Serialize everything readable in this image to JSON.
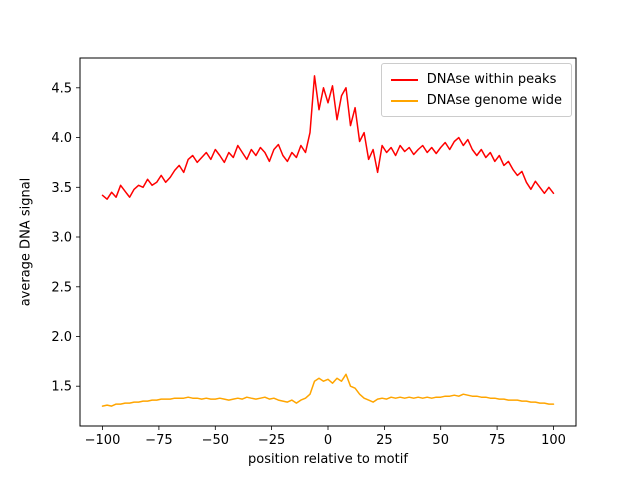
{
  "figure": {
    "background": "#ffffff"
  },
  "chart_data": {
    "type": "line",
    "title": "",
    "xlabel": "position relative to motif",
    "ylabel": "average DNA signal",
    "xlim": [
      -110,
      110
    ],
    "ylim": [
      1.1,
      4.8
    ],
    "grid": false,
    "legend": {
      "position": "upper right",
      "border_color": "#cccccc",
      "background": "#ffffff"
    },
    "xticks": [
      {
        "value": -100,
        "label": "−100"
      },
      {
        "value": -75,
        "label": "−75"
      },
      {
        "value": -50,
        "label": "−50"
      },
      {
        "value": -25,
        "label": "−25"
      },
      {
        "value": 0,
        "label": "0"
      },
      {
        "value": 25,
        "label": "25"
      },
      {
        "value": 50,
        "label": "50"
      },
      {
        "value": 75,
        "label": "75"
      },
      {
        "value": 100,
        "label": "100"
      }
    ],
    "yticks": [
      {
        "value": 1.5,
        "label": "1.5"
      },
      {
        "value": 2.0,
        "label": "2.0"
      },
      {
        "value": 2.5,
        "label": "2.5"
      },
      {
        "value": 3.0,
        "label": "3.0"
      },
      {
        "value": 3.5,
        "label": "3.5"
      },
      {
        "value": 4.0,
        "label": "4.0"
      },
      {
        "value": 4.5,
        "label": "4.5"
      }
    ],
    "x": [
      -100,
      -98,
      -96,
      -94,
      -92,
      -90,
      -88,
      -86,
      -84,
      -82,
      -80,
      -78,
      -76,
      -74,
      -72,
      -70,
      -68,
      -66,
      -64,
      -62,
      -60,
      -58,
      -56,
      -54,
      -52,
      -50,
      -48,
      -46,
      -44,
      -42,
      -40,
      -38,
      -36,
      -34,
      -32,
      -30,
      -28,
      -26,
      -24,
      -22,
      -20,
      -18,
      -16,
      -14,
      -12,
      -10,
      -8,
      -6,
      -4,
      -2,
      0,
      2,
      4,
      6,
      8,
      10,
      12,
      14,
      16,
      18,
      20,
      22,
      24,
      26,
      28,
      30,
      32,
      34,
      36,
      38,
      40,
      42,
      44,
      46,
      48,
      50,
      52,
      54,
      56,
      58,
      60,
      62,
      64,
      66,
      68,
      70,
      72,
      74,
      76,
      78,
      80,
      82,
      84,
      86,
      88,
      90,
      92,
      94,
      96,
      98,
      100
    ],
    "series": [
      {
        "name": "DNAse within peaks",
        "color": "#ff0000",
        "values": [
          3.42,
          3.38,
          3.45,
          3.4,
          3.52,
          3.46,
          3.4,
          3.48,
          3.52,
          3.5,
          3.58,
          3.52,
          3.55,
          3.62,
          3.55,
          3.6,
          3.67,
          3.72,
          3.65,
          3.78,
          3.82,
          3.75,
          3.8,
          3.85,
          3.78,
          3.88,
          3.82,
          3.75,
          3.85,
          3.8,
          3.92,
          3.85,
          3.78,
          3.88,
          3.82,
          3.9,
          3.85,
          3.76,
          3.88,
          3.93,
          3.82,
          3.76,
          3.85,
          3.8,
          3.92,
          3.85,
          4.05,
          4.62,
          4.28,
          4.5,
          4.35,
          4.52,
          4.18,
          4.42,
          4.5,
          4.12,
          4.3,
          3.96,
          4.05,
          3.78,
          3.88,
          3.65,
          3.92,
          3.85,
          3.9,
          3.82,
          3.92,
          3.86,
          3.9,
          3.83,
          3.88,
          3.92,
          3.85,
          3.9,
          3.84,
          3.9,
          3.95,
          3.88,
          3.96,
          4.0,
          3.92,
          3.98,
          3.88,
          3.82,
          3.88,
          3.8,
          3.85,
          3.76,
          3.82,
          3.72,
          3.76,
          3.68,
          3.62,
          3.66,
          3.55,
          3.48,
          3.56,
          3.5,
          3.44,
          3.5,
          3.44
        ]
      },
      {
        "name": "DNAse genome wide",
        "color": "#ffa500",
        "values": [
          1.3,
          1.31,
          1.3,
          1.32,
          1.32,
          1.33,
          1.33,
          1.34,
          1.34,
          1.35,
          1.35,
          1.36,
          1.36,
          1.37,
          1.37,
          1.37,
          1.38,
          1.38,
          1.38,
          1.39,
          1.38,
          1.38,
          1.37,
          1.38,
          1.37,
          1.37,
          1.38,
          1.37,
          1.36,
          1.37,
          1.38,
          1.37,
          1.39,
          1.38,
          1.37,
          1.38,
          1.39,
          1.37,
          1.38,
          1.36,
          1.35,
          1.34,
          1.36,
          1.33,
          1.36,
          1.38,
          1.42,
          1.55,
          1.58,
          1.55,
          1.57,
          1.53,
          1.58,
          1.55,
          1.62,
          1.5,
          1.48,
          1.42,
          1.38,
          1.36,
          1.34,
          1.37,
          1.38,
          1.37,
          1.39,
          1.38,
          1.39,
          1.38,
          1.39,
          1.38,
          1.39,
          1.38,
          1.39,
          1.38,
          1.39,
          1.39,
          1.4,
          1.4,
          1.41,
          1.4,
          1.42,
          1.41,
          1.4,
          1.4,
          1.39,
          1.39,
          1.38,
          1.38,
          1.37,
          1.37,
          1.36,
          1.36,
          1.36,
          1.35,
          1.35,
          1.34,
          1.34,
          1.33,
          1.33,
          1.32,
          1.32
        ]
      }
    ]
  }
}
